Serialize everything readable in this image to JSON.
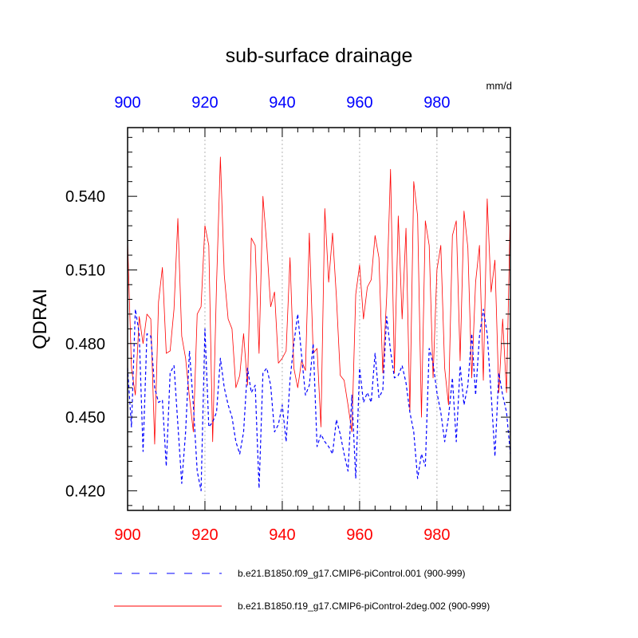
{
  "chart_data": {
    "type": "line",
    "title": "sub-surface drainage",
    "units": "mm/d",
    "ylabel": "QDRAI",
    "xlabel": "",
    "xlim": [
      900,
      999
    ],
    "ylim": [
      0.412,
      0.568
    ],
    "x_ticks": [
      "900",
      "920",
      "940",
      "960",
      "980"
    ],
    "y_ticks": [
      "0.420",
      "0.450",
      "0.480",
      "0.510",
      "0.540"
    ],
    "grid": "vertical dotted at x ticks",
    "colors": {
      "bottom_axis": "#ff0000",
      "top_axis": "#0000ff",
      "grid": "#b4b4b4"
    },
    "x_start": 900,
    "series": [
      {
        "name": "b.e21.B1850.f09_g17.CMIP6-piControl.001 (900-999)",
        "color": "#0000ff",
        "dash": "4,3",
        "values": [
          0.47,
          0.446,
          0.494,
          0.484,
          0.436,
          0.484,
          0.483,
          0.462,
          0.456,
          0.457,
          0.43,
          0.468,
          0.471,
          0.447,
          0.423,
          0.444,
          0.477,
          0.455,
          0.428,
          0.42,
          0.486,
          0.446,
          0.448,
          0.452,
          0.474,
          0.462,
          0.455,
          0.45,
          0.44,
          0.435,
          0.444,
          0.47,
          0.46,
          0.463,
          0.421,
          0.468,
          0.47,
          0.463,
          0.444,
          0.447,
          0.455,
          0.44,
          0.465,
          0.48,
          0.492,
          0.475,
          0.459,
          0.463,
          0.48,
          0.438,
          0.443,
          0.44,
          0.438,
          0.435,
          0.449,
          0.443,
          0.435,
          0.428,
          0.459,
          0.425,
          0.47,
          0.456,
          0.46,
          0.456,
          0.476,
          0.458,
          0.461,
          0.491,
          0.477,
          0.466,
          0.467,
          0.471,
          0.464,
          0.452,
          0.444,
          0.425,
          0.435,
          0.43,
          0.478,
          0.472,
          0.46,
          0.452,
          0.44,
          0.45,
          0.466,
          0.44,
          0.471,
          0.455,
          0.463,
          0.484,
          0.459,
          0.483,
          0.494,
          0.484,
          0.46,
          0.434,
          0.468,
          0.459,
          0.452,
          0.435
        ]
      },
      {
        "name": "b.e21.B1850.f19_g17.CMIP6-piControl-2deg.002 (900-999)",
        "color": "#ff0000",
        "dash": "",
        "values": [
          0.522,
          0.47,
          0.459,
          0.491,
          0.48,
          0.492,
          0.49,
          0.439,
          0.497,
          0.511,
          0.476,
          0.477,
          0.494,
          0.531,
          0.483,
          0.474,
          0.458,
          0.444,
          0.492,
          0.495,
          0.528,
          0.52,
          0.44,
          0.504,
          0.556,
          0.508,
          0.49,
          0.486,
          0.462,
          0.467,
          0.484,
          0.463,
          0.523,
          0.52,
          0.476,
          0.54,
          0.52,
          0.495,
          0.501,
          0.472,
          0.474,
          0.477,
          0.515,
          0.47,
          0.462,
          0.473,
          0.469,
          0.525,
          0.476,
          0.478,
          0.446,
          0.535,
          0.505,
          0.525,
          0.499,
          0.467,
          0.465,
          0.455,
          0.444,
          0.5,
          0.512,
          0.49,
          0.503,
          0.506,
          0.524,
          0.515,
          0.468,
          0.499,
          0.551,
          0.468,
          0.532,
          0.49,
          0.527,
          0.452,
          0.546,
          0.532,
          0.45,
          0.53,
          0.52,
          0.466,
          0.51,
          0.52,
          0.47,
          0.455,
          0.524,
          0.53,
          0.473,
          0.534,
          0.519,
          0.466,
          0.505,
          0.52,
          0.465,
          0.539,
          0.501,
          0.514,
          0.46,
          0.49,
          0.46,
          0.537
        ]
      }
    ],
    "legend": "bottom, below plot"
  }
}
